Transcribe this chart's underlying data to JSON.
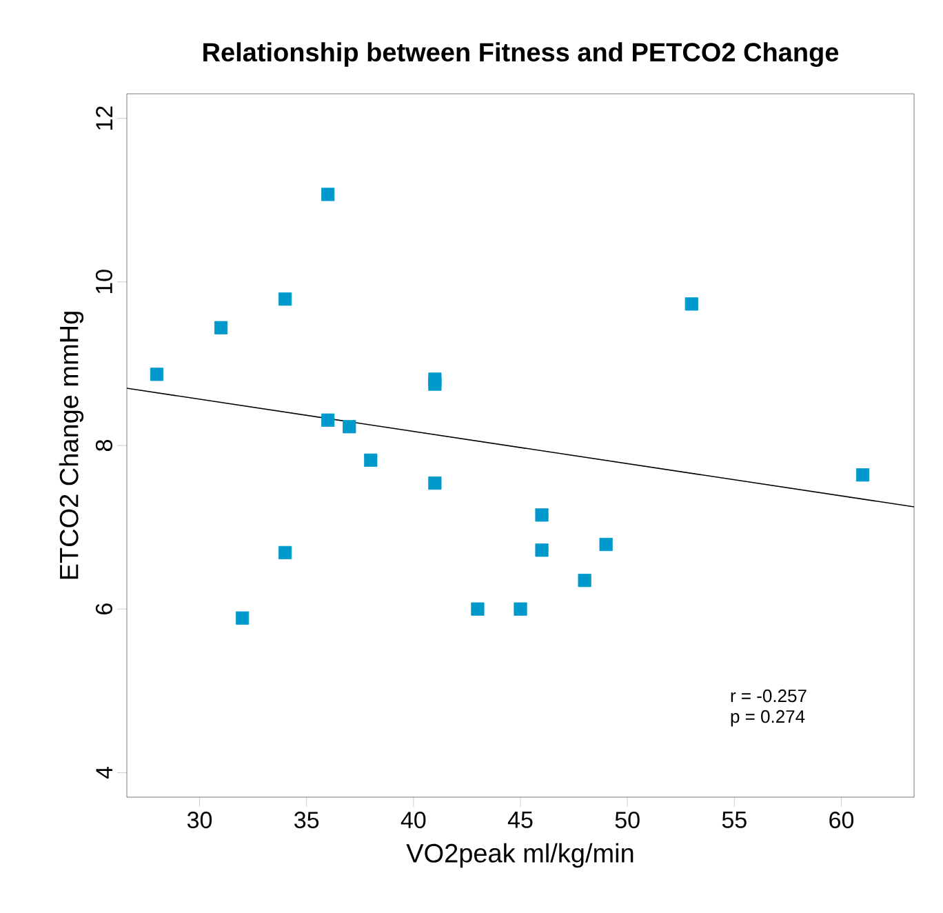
{
  "chart_data": {
    "type": "scatter",
    "title": "Relationship between Fitness and PETCO2 Change",
    "xlabel": "VO2peak ml/kg/min",
    "ylabel": "ETCO2 Change mmHg",
    "xlim": [
      26.6,
      63.4
    ],
    "ylim": [
      3.7,
      12.3
    ],
    "xticks": [
      30,
      35,
      40,
      45,
      50,
      55,
      60
    ],
    "yticks": [
      4,
      6,
      8,
      10,
      12
    ],
    "grid": false,
    "marker": "square",
    "series": [
      {
        "color": "#0099cc",
        "x": [
          28,
          31,
          32,
          34,
          34,
          36,
          36,
          37,
          38,
          41,
          41,
          41,
          43,
          45,
          46,
          46,
          48,
          49,
          53,
          61
        ],
        "values": [
          8.87,
          9.44,
          5.89,
          9.79,
          6.69,
          11.07,
          8.31,
          8.23,
          7.82,
          8.75,
          8.81,
          7.54,
          6.0,
          6.0,
          7.15,
          6.72,
          6.35,
          6.79,
          9.73,
          7.64
        ]
      },
      {
        "type": "line",
        "color": "#000000",
        "marker": "none",
        "x": [
          26.6,
          63.4
        ],
        "values": [
          8.7,
          7.25
        ]
      }
    ],
    "annotations": [
      "r = -0.257",
      "p = 0.274"
    ]
  }
}
